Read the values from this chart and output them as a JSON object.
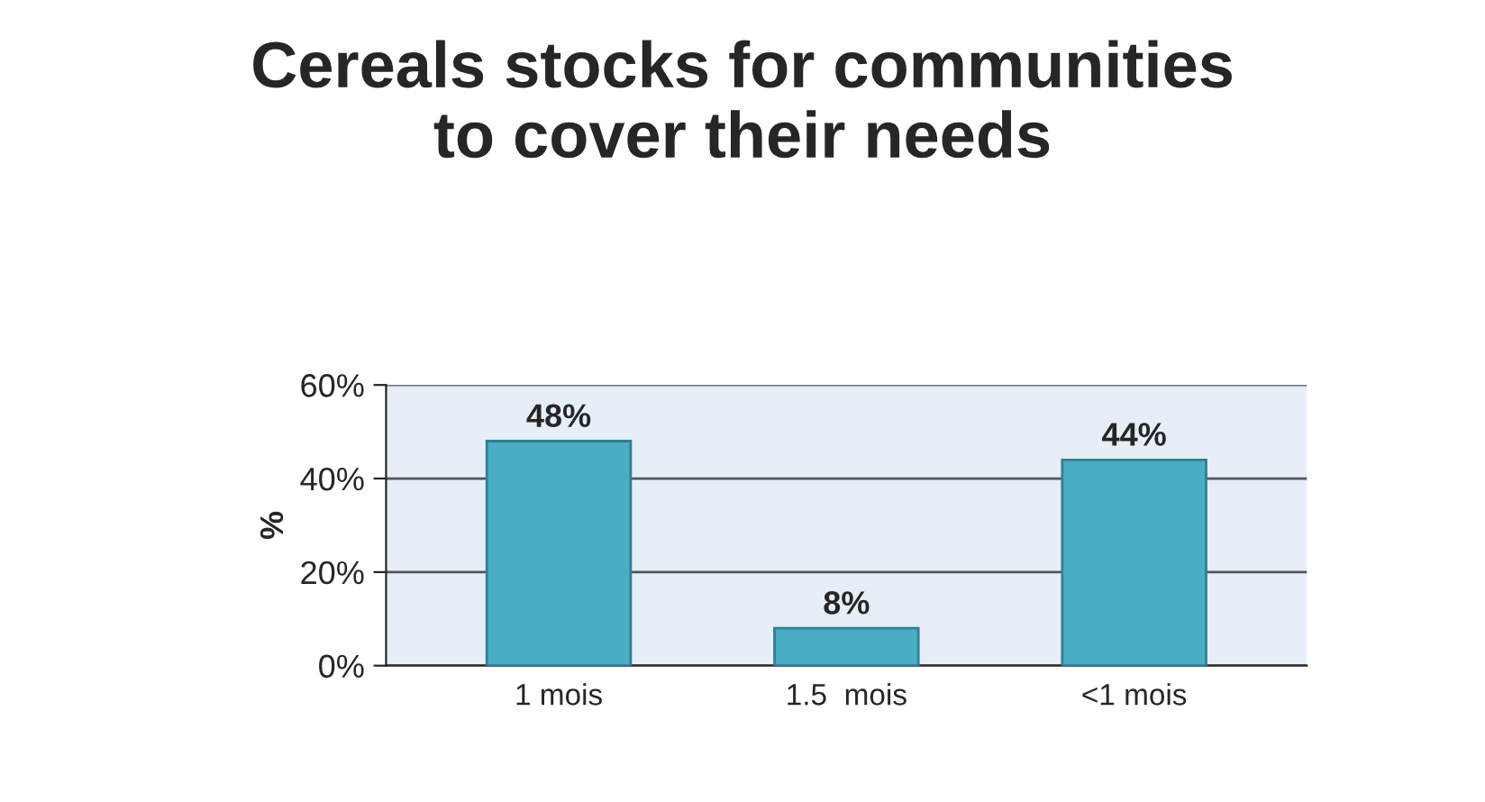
{
  "chart_data": {
    "type": "bar",
    "title": "Cereals stocks for communities\nto cover their needs",
    "ylabel": "%",
    "categories": [
      "1 mois",
      "1.5  mois",
      "<1 mois"
    ],
    "values": [
      48,
      8,
      44
    ],
    "color": "#4bacc6",
    "value_labels": [
      "48%",
      "8%",
      "44%"
    ],
    "ylim": [
      0,
      60
    ],
    "yticks": [
      {
        "value": 0,
        "label": "0%"
      },
      {
        "value": 20,
        "label": "20%"
      },
      {
        "value": 40,
        "label": "40%"
      },
      {
        "value": 60,
        "label": "60%"
      }
    ],
    "grid": "y",
    "legend": false
  }
}
